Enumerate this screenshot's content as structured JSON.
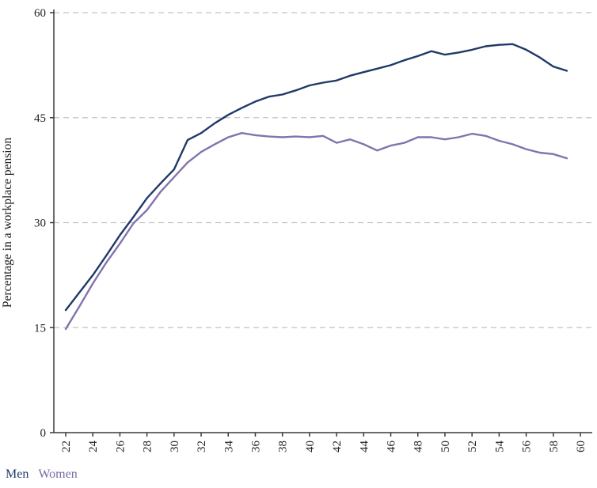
{
  "chart_data": {
    "type": "line",
    "title": "",
    "xlabel": "",
    "ylabel": "Percentage in a workplace pension",
    "ylim": [
      0,
      60
    ],
    "yticks": [
      0,
      15,
      30,
      45,
      60
    ],
    "xticks": [
      22,
      24,
      26,
      28,
      30,
      32,
      34,
      36,
      38,
      40,
      42,
      44,
      46,
      48,
      50,
      52,
      54,
      56,
      58,
      60
    ],
    "grid": "dashed-horizontal",
    "legend_position": "bottom-left",
    "x": [
      22,
      23,
      24,
      25,
      26,
      27,
      28,
      29,
      30,
      31,
      32,
      33,
      34,
      35,
      36,
      37,
      38,
      39,
      40,
      41,
      42,
      43,
      44,
      45,
      46,
      47,
      48,
      49,
      50,
      51,
      52,
      53,
      54,
      55,
      56,
      57,
      58,
      59
    ],
    "series": [
      {
        "name": "Men",
        "color": "#1f3a68",
        "values": [
          17.5,
          20.0,
          22.5,
          25.3,
          28.2,
          30.8,
          33.5,
          35.6,
          37.6,
          41.8,
          42.8,
          44.2,
          45.4,
          46.4,
          47.3,
          48.0,
          48.3,
          48.9,
          49.6,
          50.0,
          50.3,
          51.0,
          51.5,
          52.0,
          52.5,
          53.2,
          53.8,
          54.5,
          54.0,
          54.3,
          54.7,
          55.2,
          55.4,
          55.5,
          54.7,
          53.6,
          52.3,
          51.7
        ]
      },
      {
        "name": "Women",
        "color": "#8273ae",
        "values": [
          14.8,
          18.0,
          21.3,
          24.3,
          27.0,
          29.9,
          31.8,
          34.4,
          36.5,
          38.6,
          40.1,
          41.2,
          42.2,
          42.8,
          42.5,
          42.3,
          42.2,
          42.3,
          42.2,
          42.4,
          41.4,
          41.9,
          41.2,
          40.3,
          41.0,
          41.4,
          42.2,
          42.2,
          41.9,
          42.2,
          42.7,
          42.4,
          41.7,
          41.2,
          40.5,
          40.0,
          39.8,
          39.2
        ]
      }
    ]
  },
  "colors": {
    "axis": "#3a3a3a",
    "grid": "#c3c3c3",
    "text": "#1f1f1f",
    "men": "#1f3a68",
    "women": "#7c6aa6"
  }
}
